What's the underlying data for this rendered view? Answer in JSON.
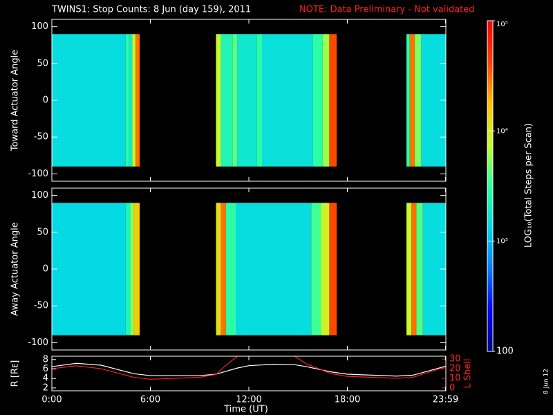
{
  "chart_data": {
    "type": "spectrogram",
    "title": "TWINS1: Stop Counts:  8 Jun (day 159), 2011",
    "note": "NOTE: Data Preliminary - Not validated",
    "note_color": "#ff2020",
    "date_stamp": "8 Jun 12",
    "xlabel": "Time (UT)",
    "xlim": [
      0,
      24
    ],
    "xticks": [
      {
        "value": 0,
        "label": "0:00"
      },
      {
        "value": 6,
        "label": "6:00"
      },
      {
        "value": 12,
        "label": "12:00"
      },
      {
        "value": 18,
        "label": "18:00"
      },
      {
        "value": 23.98,
        "label": "23:59"
      }
    ],
    "colorbar": {
      "label": "LOG₁₀(Total Steps per Scan)",
      "log": true,
      "lim": [
        100,
        100000
      ],
      "ticks": [
        {
          "value": 100,
          "label": "100"
        },
        {
          "value": 1000,
          "label": "10³"
        },
        {
          "value": 10000,
          "label": "10⁴"
        },
        {
          "value": 100000,
          "label": "10⁵"
        }
      ],
      "colors": [
        "#00008c",
        "#0000ff",
        "#0080ff",
        "#00d8e8",
        "#30ffa0",
        "#c0ff30",
        "#ffc000",
        "#ff4000",
        "#ff0000"
      ]
    },
    "panels": [
      {
        "ylabel": "Toward Actuator Angle",
        "ylim": [
          -110,
          110
        ],
        "yticks": [
          -100,
          -50,
          0,
          50,
          100
        ],
        "angle_range": [
          -90,
          90
        ],
        "columns": [
          {
            "start": 0,
            "end": 4.5,
            "counts": 1500
          },
          {
            "start": 4.5,
            "end": 4.7,
            "counts": 3000
          },
          {
            "start": 4.7,
            "end": 4.9,
            "counts": 2000
          },
          {
            "start": 4.9,
            "end": 5.1,
            "counts": 8000
          },
          {
            "start": 5.1,
            "end": 5.35,
            "counts": 30000
          },
          {
            "start": 10.0,
            "end": 10.3,
            "counts": 8000
          },
          {
            "start": 10.3,
            "end": 11.0,
            "counts": 2500
          },
          {
            "start": 11.0,
            "end": 11.3,
            "counts": 4000
          },
          {
            "start": 11.3,
            "end": 12.5,
            "counts": 1800
          },
          {
            "start": 12.5,
            "end": 12.8,
            "counts": 3000
          },
          {
            "start": 12.8,
            "end": 15.9,
            "counts": 1600
          },
          {
            "start": 15.9,
            "end": 16.5,
            "counts": 3000
          },
          {
            "start": 16.5,
            "end": 16.9,
            "counts": 6000
          },
          {
            "start": 16.9,
            "end": 17.35,
            "counts": 40000
          },
          {
            "start": 21.6,
            "end": 21.8,
            "counts": 3000
          },
          {
            "start": 21.8,
            "end": 22.1,
            "counts": 30000
          },
          {
            "start": 22.1,
            "end": 22.5,
            "counts": 5000
          },
          {
            "start": 22.5,
            "end": 24,
            "counts": 1500
          }
        ]
      },
      {
        "ylabel": "Away Actuator Angle",
        "ylim": [
          -110,
          110
        ],
        "yticks": [
          -100,
          -50,
          0,
          50,
          100
        ],
        "angle_range": [
          -90,
          90
        ],
        "columns": [
          {
            "start": 0,
            "end": 4.5,
            "counts": 1400
          },
          {
            "start": 4.5,
            "end": 4.8,
            "counts": 2500
          },
          {
            "start": 4.8,
            "end": 5.0,
            "counts": 6000
          },
          {
            "start": 5.0,
            "end": 5.35,
            "counts": 15000
          },
          {
            "start": 10.0,
            "end": 10.3,
            "counts": 12000
          },
          {
            "start": 10.3,
            "end": 10.6,
            "counts": 30000
          },
          {
            "start": 10.6,
            "end": 11.2,
            "counts": 3000
          },
          {
            "start": 11.2,
            "end": 15.8,
            "counts": 1500
          },
          {
            "start": 15.8,
            "end": 16.4,
            "counts": 3500
          },
          {
            "start": 16.4,
            "end": 16.9,
            "counts": 9000
          },
          {
            "start": 16.9,
            "end": 17.35,
            "counts": 40000
          },
          {
            "start": 21.6,
            "end": 21.9,
            "counts": 8000
          },
          {
            "start": 21.9,
            "end": 22.2,
            "counts": 30000
          },
          {
            "start": 22.2,
            "end": 22.6,
            "counts": 4000
          },
          {
            "start": 22.6,
            "end": 24,
            "counts": 1500
          }
        ]
      }
    ],
    "orbit": {
      "ylabel": "R [Rᴇ]",
      "y2label": "L Shell",
      "ylim": [
        1.4,
        8.7
      ],
      "yticks": [
        2,
        4,
        6,
        8
      ],
      "y2lim": [
        -3,
        33
      ],
      "y2ticks": [
        0,
        10,
        20,
        30
      ],
      "x": [
        0,
        1.5,
        3,
        5,
        6,
        9,
        10,
        10.5,
        11.3,
        12,
        13.5,
        14.8,
        15.5,
        17,
        18,
        21,
        22,
        24
      ],
      "series": [
        {
          "name": "R",
          "color": "#ffffff",
          "values": [
            6.5,
            7.2,
            6.8,
            5,
            4.6,
            4.6,
            4.9,
            5.4,
            6.2,
            6.7,
            7,
            6.9,
            6.5,
            5.4,
            4.9,
            4.5,
            4.7,
            6.6
          ]
        },
        {
          "name": "L Shell",
          "color": "#ff2020",
          "axis": "y2",
          "values": [
            20,
            23,
            20,
            11,
            9,
            11,
            14,
            22,
            33,
            null,
            null,
            33,
            25,
            15,
            12,
            10,
            11,
            22
          ]
        }
      ]
    }
  }
}
